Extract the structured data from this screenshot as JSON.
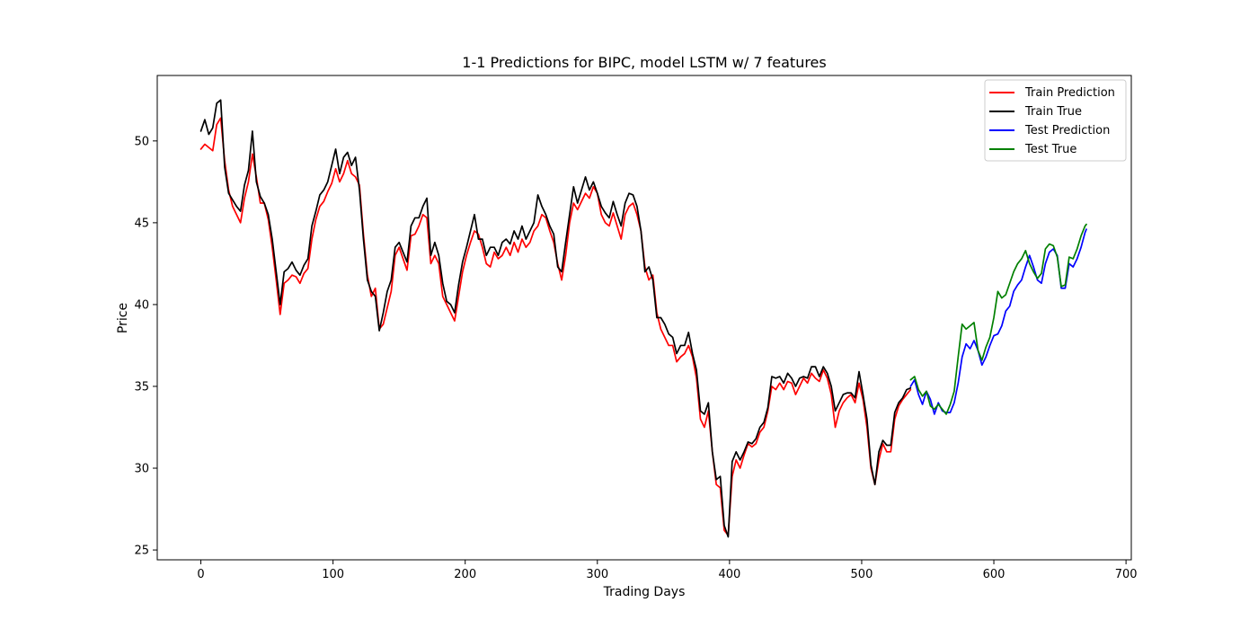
{
  "chart_data": {
    "type": "line",
    "title": "1-1 Predictions for BIPC, model LSTM w/ 7 features",
    "xlabel": "Trading Days",
    "ylabel": "Price",
    "xlim": [
      -33,
      704
    ],
    "ylim": [
      24.4,
      54.0
    ],
    "xticks": [
      0,
      100,
      200,
      300,
      400,
      500,
      600,
      700
    ],
    "yticks": [
      25,
      30,
      35,
      40,
      45,
      50
    ],
    "grid": false,
    "legend_position": "top-right",
    "series": [
      {
        "name": "Train Prediction",
        "color": "#ff0000",
        "x": [
          0,
          3,
          6,
          9,
          12,
          15,
          18,
          21,
          24,
          27,
          30,
          33,
          36,
          39,
          42,
          45,
          48,
          51,
          54,
          57,
          60,
          63,
          66,
          69,
          72,
          75,
          78,
          81,
          84,
          87,
          90,
          93,
          96,
          99,
          102,
          105,
          108,
          111,
          114,
          117,
          120,
          123,
          126,
          129,
          132,
          135,
          138,
          141,
          144,
          147,
          150,
          153,
          156,
          159,
          162,
          165,
          168,
          171,
          174,
          177,
          180,
          183,
          186,
          189,
          192,
          195,
          198,
          201,
          204,
          207,
          210,
          213,
          216,
          219,
          222,
          225,
          228,
          231,
          234,
          237,
          240,
          243,
          246,
          249,
          252,
          255,
          258,
          261,
          264,
          267,
          270,
          273,
          276,
          279,
          282,
          285,
          288,
          291,
          294,
          297,
          300,
          303,
          306,
          309,
          312,
          315,
          318,
          321,
          324,
          327,
          330,
          333,
          336,
          339,
          342,
          345,
          348,
          351,
          354,
          357,
          360,
          363,
          366,
          369,
          372,
          375,
          378,
          381,
          384,
          387,
          390,
          393,
          396,
          399,
          402,
          405,
          408,
          411,
          414,
          417,
          420,
          423,
          426,
          429,
          432,
          435,
          438,
          441,
          444,
          447,
          450,
          453,
          456,
          459,
          462,
          465,
          468,
          471,
          474,
          477,
          480,
          483,
          486,
          489,
          492,
          495,
          498,
          501,
          504,
          507,
          510,
          513,
          516,
          519,
          522,
          525,
          528,
          531,
          534,
          537
        ],
        "y": [
          49.5,
          49.8,
          49.6,
          49.4,
          51.0,
          51.4,
          48.8,
          47.0,
          46.0,
          45.5,
          45.0,
          46.5,
          47.5,
          49.2,
          47.8,
          46.2,
          46.2,
          45.2,
          43.5,
          41.5,
          39.4,
          41.3,
          41.5,
          41.8,
          41.7,
          41.3,
          41.9,
          42.2,
          44.0,
          45.2,
          46.0,
          46.3,
          46.9,
          47.4,
          48.3,
          47.5,
          48.0,
          48.8,
          48.0,
          47.8,
          47.3,
          44.3,
          41.8,
          40.5,
          41.0,
          38.5,
          38.8,
          39.8,
          40.8,
          43.0,
          43.5,
          42.8,
          42.1,
          44.2,
          44.3,
          44.8,
          45.5,
          45.3,
          42.5,
          43.0,
          42.5,
          40.5,
          40.0,
          39.5,
          39.0,
          40.5,
          42.0,
          43.0,
          43.8,
          44.5,
          44.3,
          43.5,
          42.5,
          42.3,
          43.2,
          42.8,
          43.0,
          43.5,
          43.0,
          43.8,
          43.2,
          44.0,
          43.5,
          43.8,
          44.5,
          44.8,
          45.5,
          45.3,
          44.5,
          43.8,
          42.5,
          41.5,
          43.0,
          45.0,
          46.2,
          45.8,
          46.3,
          46.8,
          46.5,
          47.2,
          46.8,
          45.5,
          45.0,
          44.8,
          45.6,
          44.8,
          44.0,
          45.5,
          46.0,
          46.2,
          45.5,
          44.5,
          42.3,
          41.5,
          41.8,
          39.5,
          38.5,
          38.0,
          37.5,
          37.5,
          36.5,
          36.8,
          37.0,
          37.5,
          36.8,
          35.5,
          33.0,
          32.5,
          33.5,
          31.0,
          29.0,
          28.8,
          26.2,
          25.9,
          29.5,
          30.5,
          30.0,
          30.8,
          31.5,
          31.3,
          31.5,
          32.2,
          32.5,
          33.5,
          35.0,
          34.8,
          35.2,
          34.8,
          35.3,
          35.2,
          34.5,
          35.0,
          35.5,
          35.2,
          35.8,
          35.5,
          35.3,
          36.0,
          35.5,
          34.5,
          32.5,
          33.5,
          34.0,
          34.3,
          34.5,
          34.0,
          35.2,
          34.2,
          32.5,
          30.0,
          29.0,
          30.5,
          31.5,
          31.0,
          31.0,
          33.0,
          33.8,
          34.2,
          34.5,
          34.8
        ]
      },
      {
        "name": "Train True",
        "color": "#000000",
        "x": [
          0,
          3,
          6,
          9,
          12,
          15,
          18,
          21,
          24,
          27,
          30,
          33,
          36,
          39,
          42,
          45,
          48,
          51,
          54,
          57,
          60,
          63,
          66,
          69,
          72,
          75,
          78,
          81,
          84,
          87,
          90,
          93,
          96,
          99,
          102,
          105,
          108,
          111,
          114,
          117,
          120,
          123,
          126,
          129,
          132,
          135,
          138,
          141,
          144,
          147,
          150,
          153,
          156,
          159,
          162,
          165,
          168,
          171,
          174,
          177,
          180,
          183,
          186,
          189,
          192,
          195,
          198,
          201,
          204,
          207,
          210,
          213,
          216,
          219,
          222,
          225,
          228,
          231,
          234,
          237,
          240,
          243,
          246,
          249,
          252,
          255,
          258,
          261,
          264,
          267,
          270,
          273,
          276,
          279,
          282,
          285,
          288,
          291,
          294,
          297,
          300,
          303,
          306,
          309,
          312,
          315,
          318,
          321,
          324,
          327,
          330,
          333,
          336,
          339,
          342,
          345,
          348,
          351,
          354,
          357,
          360,
          363,
          366,
          369,
          372,
          375,
          378,
          381,
          384,
          387,
          390,
          393,
          396,
          399,
          402,
          405,
          408,
          411,
          414,
          417,
          420,
          423,
          426,
          429,
          432,
          435,
          438,
          441,
          444,
          447,
          450,
          453,
          456,
          459,
          462,
          465,
          468,
          471,
          474,
          477,
          480,
          483,
          486,
          489,
          492,
          495,
          498,
          501,
          504,
          507,
          510,
          513,
          516,
          519,
          522,
          525,
          528,
          531,
          534,
          537
        ],
        "y": [
          50.6,
          51.3,
          50.4,
          50.8,
          52.3,
          52.5,
          48.4,
          46.8,
          46.4,
          46.0,
          45.7,
          47.3,
          48.2,
          50.6,
          47.5,
          46.6,
          46.2,
          45.5,
          44.0,
          42.0,
          40.0,
          42.0,
          42.2,
          42.6,
          42.1,
          41.8,
          42.4,
          42.8,
          44.8,
          45.7,
          46.7,
          47.0,
          47.5,
          48.5,
          49.5,
          48.0,
          49.0,
          49.3,
          48.5,
          49.0,
          47.0,
          44.0,
          41.5,
          40.8,
          40.5,
          38.4,
          39.5,
          40.8,
          41.5,
          43.5,
          43.8,
          43.2,
          42.6,
          44.8,
          45.3,
          45.3,
          46.0,
          46.5,
          43.0,
          43.8,
          43.0,
          41.3,
          40.2,
          40.0,
          39.5,
          41.2,
          42.6,
          43.5,
          44.5,
          45.5,
          44.0,
          44.0,
          43.0,
          43.5,
          43.5,
          43.0,
          43.8,
          44.0,
          43.7,
          44.5,
          44.0,
          44.8,
          44.0,
          44.5,
          45.0,
          46.7,
          46.0,
          45.5,
          44.8,
          44.3,
          42.3,
          42.0,
          43.8,
          45.5,
          47.2,
          46.2,
          47.0,
          47.8,
          47.0,
          47.5,
          46.8,
          46.0,
          45.6,
          45.3,
          46.3,
          45.5,
          44.8,
          46.2,
          46.8,
          46.7,
          46.0,
          44.5,
          42.0,
          42.3,
          41.5,
          39.2,
          39.2,
          38.8,
          38.2,
          38.0,
          37.0,
          37.5,
          37.5,
          38.3,
          37.0,
          36.0,
          33.5,
          33.3,
          34.0,
          31.0,
          29.3,
          29.5,
          26.5,
          25.8,
          30.4,
          31.0,
          30.5,
          31.0,
          31.6,
          31.5,
          31.8,
          32.5,
          32.8,
          33.7,
          35.6,
          35.5,
          35.6,
          35.2,
          35.8,
          35.5,
          35.0,
          35.5,
          35.6,
          35.5,
          36.2,
          36.2,
          35.6,
          36.2,
          35.8,
          35.0,
          33.5,
          34.0,
          34.5,
          34.6,
          34.6,
          34.3,
          35.9,
          34.5,
          33.0,
          30.2,
          29.0,
          31.0,
          31.7,
          31.4,
          31.4,
          33.4,
          34.0,
          34.3,
          34.8,
          34.9
        ]
      },
      {
        "name": "Test Prediction",
        "color": "#0000ff",
        "x": [
          537,
          540,
          543,
          546,
          549,
          552,
          555,
          558,
          561,
          564,
          567,
          570,
          573,
          576,
          579,
          582,
          585,
          588,
          591,
          594,
          597,
          600,
          603,
          606,
          609,
          612,
          615,
          618,
          621,
          624,
          627,
          630,
          633,
          636,
          639,
          642,
          645,
          648,
          651,
          654,
          657,
          660,
          663,
          666,
          669,
          670
        ],
        "y": [
          35.0,
          35.4,
          34.5,
          33.9,
          34.7,
          34.2,
          33.3,
          34.0,
          33.5,
          33.4,
          33.4,
          34.0,
          35.2,
          36.8,
          37.6,
          37.3,
          37.8,
          37.2,
          36.3,
          36.8,
          37.5,
          38.1,
          38.2,
          38.7,
          39.6,
          39.9,
          40.8,
          41.2,
          41.5,
          42.3,
          43.0,
          42.3,
          41.5,
          41.3,
          42.5,
          43.2,
          43.4,
          43.0,
          41.0,
          41.0,
          42.5,
          42.3,
          42.8,
          43.5,
          44.4,
          44.6
        ]
      },
      {
        "name": "Test True",
        "color": "#008000",
        "x": [
          537,
          540,
          543,
          546,
          549,
          552,
          555,
          558,
          561,
          564,
          567,
          570,
          573,
          576,
          579,
          582,
          585,
          588,
          591,
          594,
          597,
          600,
          603,
          606,
          609,
          612,
          615,
          618,
          621,
          624,
          627,
          630,
          633,
          636,
          639,
          642,
          645,
          648,
          651,
          654,
          657,
          660,
          663,
          666,
          669,
          670
        ],
        "y": [
          35.4,
          35.6,
          34.8,
          34.4,
          34.7,
          33.8,
          33.6,
          33.9,
          33.6,
          33.3,
          33.9,
          34.7,
          36.8,
          38.8,
          38.5,
          38.7,
          38.9,
          37.2,
          36.6,
          37.4,
          38.0,
          39.2,
          40.8,
          40.4,
          40.6,
          41.3,
          42.0,
          42.5,
          42.8,
          43.3,
          42.5,
          42.0,
          41.6,
          41.9,
          43.4,
          43.7,
          43.6,
          42.9,
          41.1,
          41.2,
          42.9,
          42.8,
          43.4,
          44.2,
          44.8,
          44.9
        ]
      }
    ]
  }
}
